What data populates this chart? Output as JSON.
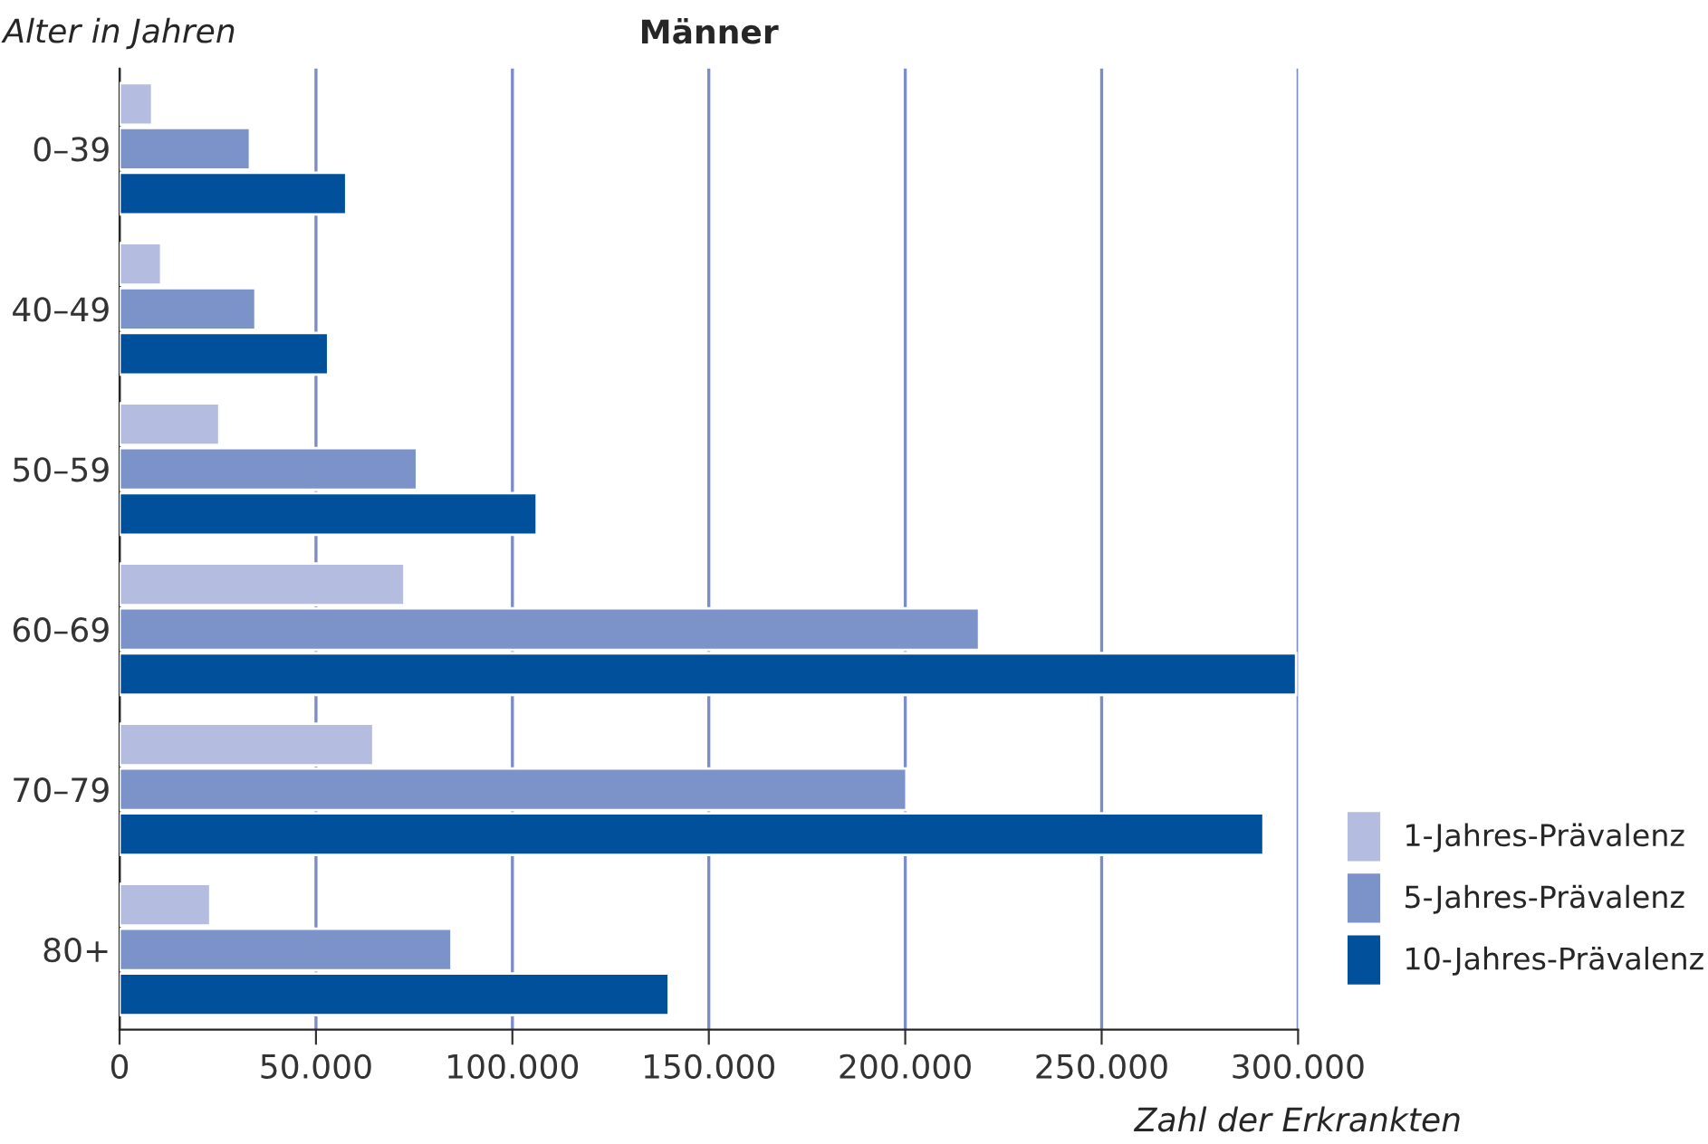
{
  "chart_data": {
    "type": "bar",
    "orientation": "horizontal",
    "title": "Männer",
    "ylabel": "Alter in Jahren",
    "xlabel": "Zahl der Erkrankten",
    "categories": [
      "0–39",
      "40–49",
      "50–59",
      "60–69",
      "70–79",
      "80+"
    ],
    "series": [
      {
        "name": "1-Jahres-Prävalenz",
        "color": "#b4bcdf",
        "values": [
          8300,
          10600,
          25400,
          72500,
          64600,
          23100
        ]
      },
      {
        "name": "5-Jahres-Prävalenz",
        "color": "#7b93c8",
        "values": [
          33200,
          34600,
          75700,
          218800,
          200300,
          84500
        ]
      },
      {
        "name": "10-Jahres-Prävalenz",
        "color": "#00509b",
        "values": [
          57700,
          53100,
          106200,
          299500,
          291200,
          139800
        ]
      }
    ],
    "xlim": [
      0,
      300000
    ],
    "xticks": [
      {
        "value": 0,
        "label": "0"
      },
      {
        "value": 50000,
        "label": "50.000"
      },
      {
        "value": 100000,
        "label": "100.000"
      },
      {
        "value": 150000,
        "label": "150.000"
      },
      {
        "value": 200000,
        "label": "200.000"
      },
      {
        "value": 250000,
        "label": "250.000"
      },
      {
        "value": 300000,
        "label": "300.000"
      }
    ],
    "grid": "x",
    "legend": "bottom right"
  }
}
